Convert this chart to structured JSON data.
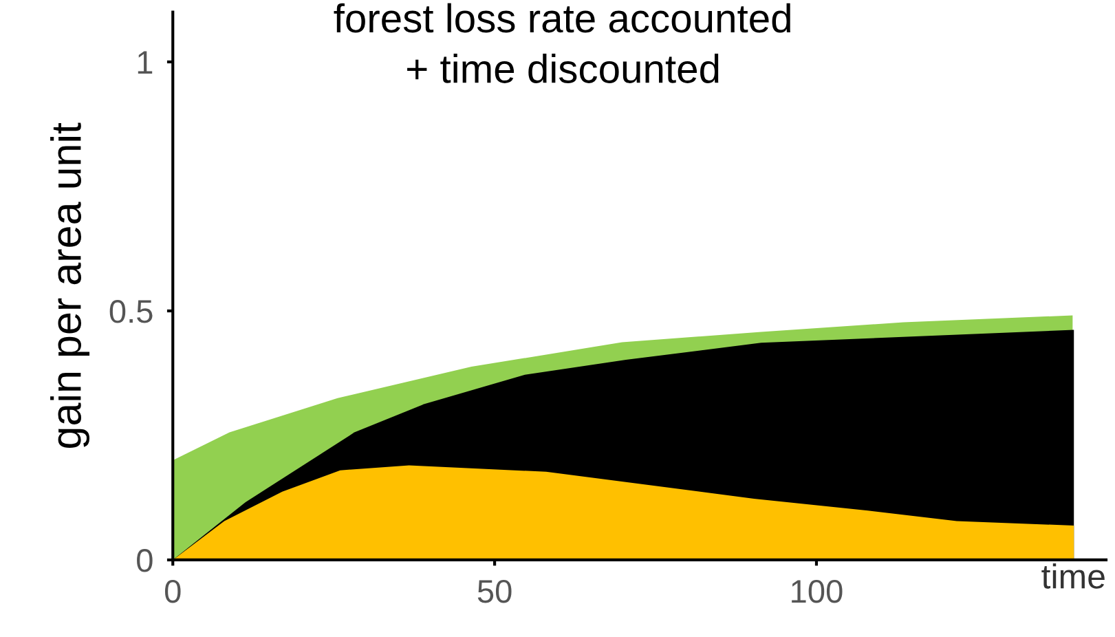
{
  "chart_data": {
    "type": "area",
    "title": "forest loss rate accounted\n+ time discounted",
    "xlabel": "time",
    "ylabel": "gain per area unit",
    "xlim": [
      0,
      145
    ],
    "xticks": [
      0,
      50,
      100
    ],
    "ylim": [
      0,
      1.1
    ],
    "yticks": [
      0,
      0.5,
      1
    ],
    "grid": false,
    "series": [
      {
        "color": "#92d050",
        "x": [
          0,
          8.8,
          25.6,
          46.4,
          69.8,
          91.4,
          113.5,
          139.8
        ],
        "values": [
          0.2,
          0.256,
          0.325,
          0.388,
          0.437,
          0.458,
          0.477,
          0.491
        ]
      },
      {
        "color": "#000000",
        "x": [
          0,
          11.3,
          28.2,
          39.1,
          54.7,
          70.4,
          91.4,
          140
        ],
        "values": [
          0,
          0.116,
          0.256,
          0.313,
          0.372,
          0.402,
          0.436,
          0.462
        ]
      },
      {
        "color": "#ffc000",
        "x": [
          0,
          8,
          17,
          26,
          36.7,
          58,
          90.3,
          108,
          121.8,
          140
        ],
        "values": [
          0,
          0.078,
          0.137,
          0.18,
          0.19,
          0.177,
          0.123,
          0.099,
          0.078,
          0.069
        ]
      }
    ]
  }
}
